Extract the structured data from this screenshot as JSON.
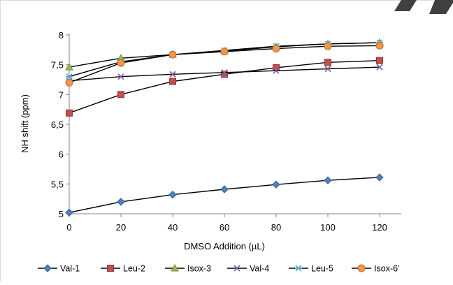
{
  "chart_data": {
    "type": "line",
    "title": "",
    "xlabel": "DMSO Addition (µL)",
    "ylabel": "NH shift (ppm)",
    "x": [
      0,
      20,
      40,
      60,
      80,
      100,
      120
    ],
    "xlim": [
      0,
      120
    ],
    "ylim": [
      5,
      8
    ],
    "x_ticks": [
      "0",
      "20",
      "40",
      "60",
      "80",
      "100",
      "120"
    ],
    "y_ticks": [
      "5",
      "5,5",
      "6",
      "6,5",
      "7",
      "7,5",
      "8"
    ],
    "y_tick_values": [
      5,
      5.5,
      6,
      6.5,
      7,
      7.5,
      8
    ],
    "grid": false,
    "legend_position": "bottom",
    "series": [
      {
        "name": "Val-1",
        "marker": "diamond",
        "color": "#4f81bd",
        "values": [
          5.02,
          5.2,
          5.32,
          5.41,
          5.49,
          5.56,
          5.61
        ]
      },
      {
        "name": "Leu-2",
        "marker": "square",
        "color": "#c0504d",
        "values": [
          6.69,
          7.0,
          7.22,
          7.34,
          7.45,
          7.54,
          7.57
        ]
      },
      {
        "name": "Isox-3",
        "marker": "triangle",
        "color": "#9bbb59",
        "values": [
          7.46,
          7.61,
          7.67,
          7.73,
          7.8,
          7.85,
          7.87
        ]
      },
      {
        "name": "Val-4",
        "marker": "x",
        "color": "#8064a2",
        "values": [
          7.23,
          7.3,
          7.34,
          7.37,
          7.4,
          7.43,
          7.46
        ]
      },
      {
        "name": "Leu-5",
        "marker": "star",
        "color": "#4bacc6",
        "values": [
          7.3,
          7.55,
          7.67,
          7.74,
          7.81,
          7.85,
          7.87
        ]
      },
      {
        "name": "Isox-6'",
        "marker": "circle",
        "color": "#f79646",
        "values": [
          7.2,
          7.53,
          7.67,
          7.72,
          7.77,
          7.81,
          7.82
        ]
      }
    ]
  }
}
